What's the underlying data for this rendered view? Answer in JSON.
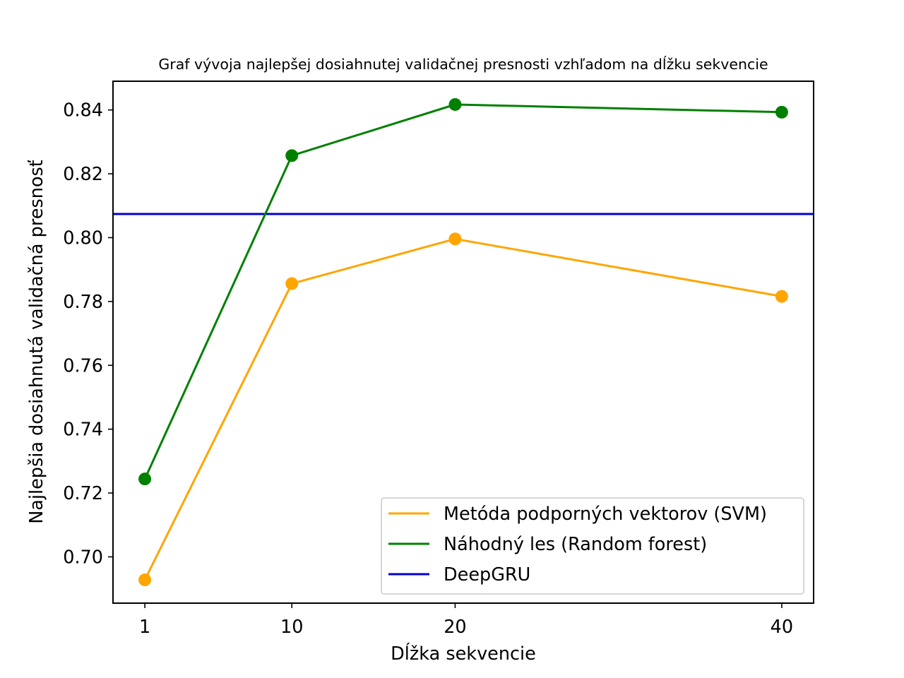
{
  "chart_data": {
    "type": "line",
    "title": "Graf vývoja najlepšej dosiahnutej validačnej presnosti vzhľadom na dĺžku sekvencie",
    "xlabel": "Dĺžka sekvencie",
    "ylabel": "Najlepšia dosiahnutá validačná presnosť",
    "x": [
      1,
      10,
      20,
      40
    ],
    "x_ticks": [
      "1",
      "10",
      "20",
      "40"
    ],
    "y_ticks": [
      "0.70",
      "0.72",
      "0.74",
      "0.76",
      "0.78",
      "0.80",
      "0.82",
      "0.84"
    ],
    "y_tick_values": [
      0.7,
      0.72,
      0.74,
      0.76,
      0.78,
      0.8,
      0.82,
      0.84
    ],
    "xlim": [
      -0.95,
      41.95
    ],
    "ylim": [
      0.6855,
      0.849
    ],
    "series": [
      {
        "name": "Metóda podporných vektorov (SVM)",
        "color": "#FFA500",
        "values": [
          0.6928,
          0.7856,
          0.7996,
          0.7816
        ],
        "markers": true
      },
      {
        "name": "Náhodný les (Random forest)",
        "color": "#008000",
        "values": [
          0.7244,
          0.8257,
          0.8417,
          0.8393
        ],
        "markers": true
      }
    ],
    "hlines": [
      {
        "name": "DeepGRU",
        "color": "#0000CC",
        "value": 0.8074
      }
    ],
    "legend_position": "lower-right",
    "grid": false
  }
}
